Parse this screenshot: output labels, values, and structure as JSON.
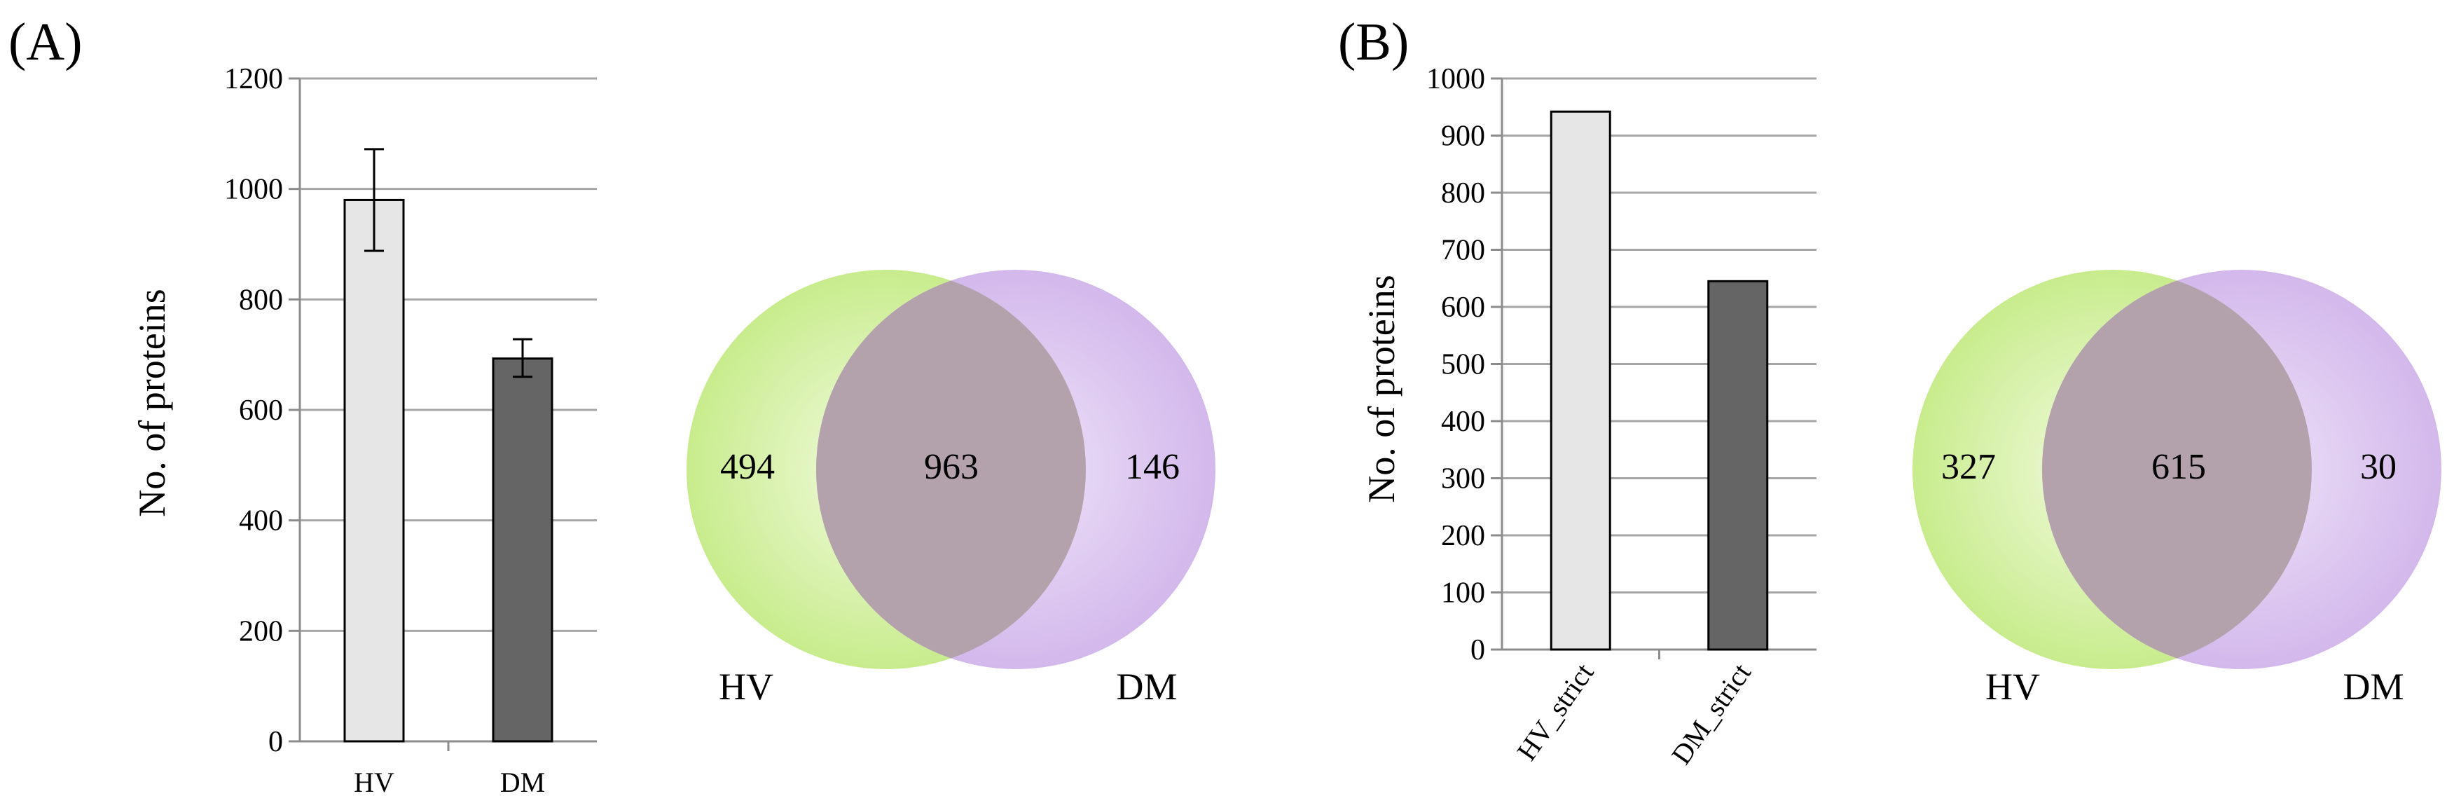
{
  "panels": {
    "a": {
      "label": "(A)"
    },
    "b": {
      "label": "(B)"
    }
  },
  "colors": {
    "gridline": "#a6a6a6",
    "axis": "#8c8c8c",
    "bar_light": "#e6e6e6",
    "bar_dark": "#656565",
    "bar_outline": "#000000",
    "venn_left": "#c8ec8c",
    "venn_right": "#d3b8ec",
    "venn_overlap": "#b3a2ac"
  },
  "chart_data": [
    {
      "type": "bar",
      "id": "A-bar",
      "title": "",
      "xlabel": "",
      "ylabel": "No. of proteins",
      "ylim": [
        0,
        1200
      ],
      "yticks": [
        0,
        200,
        400,
        600,
        800,
        1000,
        1200
      ],
      "categories": [
        "HV",
        "DM"
      ],
      "values": [
        980,
        693
      ],
      "error_low": [
        888,
        660
      ],
      "error_high": [
        1072,
        728
      ],
      "bar_colors": [
        "#e6e6e6",
        "#656565"
      ],
      "grid": true,
      "legend": "none"
    },
    {
      "type": "venn",
      "id": "A-venn",
      "sets": [
        "HV",
        "DM"
      ],
      "left_only": 494,
      "intersection": 963,
      "right_only": 146
    },
    {
      "type": "bar",
      "id": "B-bar",
      "title": "",
      "xlabel": "",
      "ylabel": "No. of proteins",
      "ylim": [
        0,
        1000
      ],
      "yticks": [
        0,
        100,
        200,
        300,
        400,
        500,
        600,
        700,
        800,
        900,
        1000
      ],
      "categories": [
        "HV_strict",
        "DM_strict"
      ],
      "values": [
        942,
        645
      ],
      "bar_colors": [
        "#e6e6e6",
        "#656565"
      ],
      "tick_label_rotation": "diagonal",
      "grid": true,
      "legend": "none"
    },
    {
      "type": "venn",
      "id": "B-venn",
      "sets": [
        "HV",
        "DM"
      ],
      "left_only": 327,
      "intersection": 615,
      "right_only": 30
    }
  ]
}
